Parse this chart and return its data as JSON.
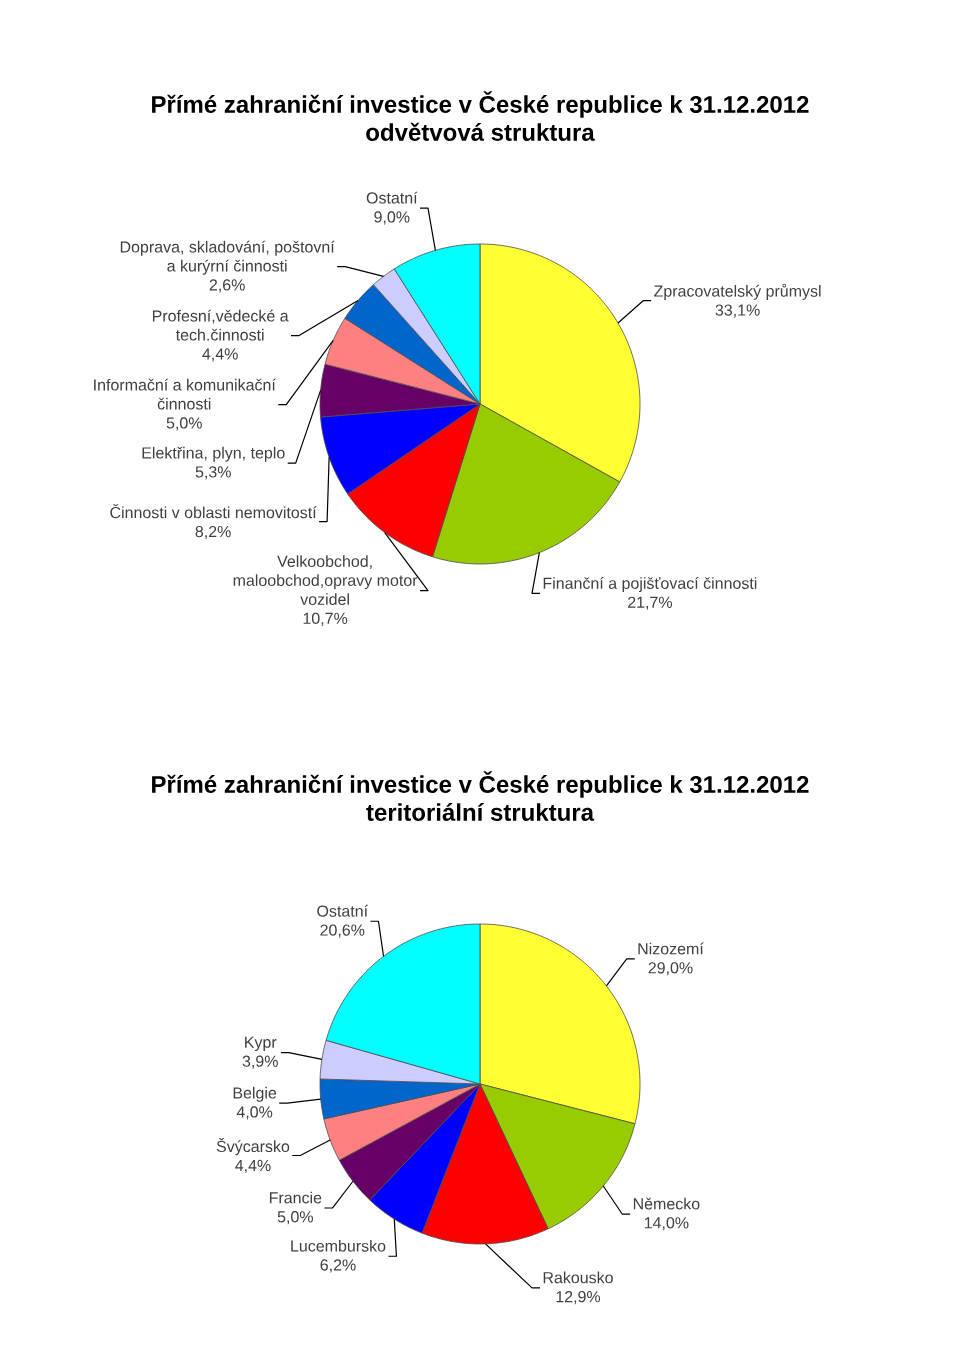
{
  "chart_data": [
    {
      "type": "pie",
      "title": "Přímé zahraniční investice v České republice k 31.12.2012",
      "subtitle": "odvětvová struktura",
      "categories": [
        "Zpracovatelský průmysl",
        "Finanční a pojišťovací činnosti",
        "Velkoobchod, maloobchod,opravy motor vozidel",
        "Činnosti v oblasti nemovitostí",
        "Elektřina, plyn, teplo",
        "Informační a komunikační činnosti",
        "Profesní,vědecké a tech.činnosti",
        "Doprava, skladování, poštovní a kurýrní činnosti",
        "Ostatní"
      ],
      "values": [
        33.1,
        21.7,
        10.7,
        8.2,
        5.3,
        5.0,
        4.4,
        2.6,
        9.0
      ],
      "value_labels": [
        "33,1%",
        "21,7%",
        "10,7%",
        "8,2%",
        "5,3%",
        "5,0%",
        "4,4%",
        "2,6%",
        "9,0%"
      ],
      "colors": [
        "#ffff33",
        "#99cc00",
        "#ff0000",
        "#0000ff",
        "#660066",
        "#ff8080",
        "#0066cc",
        "#ccccff",
        "#00ffff"
      ]
    },
    {
      "type": "pie",
      "title": "Přímé zahraniční investice v České republice k 31.12.2012",
      "subtitle": "teritoriální struktura",
      "categories": [
        "Nizozemí",
        "Německo",
        "Rakousko",
        "Lucembursko",
        "Francie",
        "Švýcarsko",
        "Belgie",
        "Kypr",
        "Ostatní"
      ],
      "values": [
        29.0,
        14.0,
        12.9,
        6.2,
        5.0,
        4.4,
        4.0,
        3.9,
        20.6
      ],
      "value_labels": [
        "29,0%",
        "14,0%",
        "12,9%",
        "6,2%",
        "5,0%",
        "4,4%",
        "4,0%",
        "3,9%",
        "20,6%"
      ],
      "colors": [
        "#ffff33",
        "#99cc00",
        "#ff0000",
        "#0000ff",
        "#660066",
        "#ff8080",
        "#0066cc",
        "#ccccff",
        "#00ffff"
      ]
    }
  ]
}
